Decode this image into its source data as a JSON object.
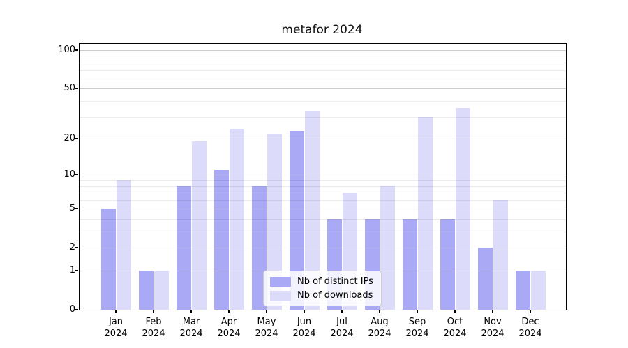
{
  "title": "metafor 2024",
  "chart_data": {
    "type": "bar",
    "title": "metafor 2024",
    "categories": [
      "Jan",
      "Feb",
      "Mar",
      "Apr",
      "May",
      "Jun",
      "Jul",
      "Aug",
      "Sep",
      "Oct",
      "Nov",
      "Dec"
    ],
    "year": "2024",
    "series": [
      {
        "name": "Nb of distinct IPs",
        "color": "#a9a9f6",
        "values": [
          5,
          1,
          8,
          11,
          8,
          23,
          4,
          4,
          4,
          4,
          2,
          1
        ]
      },
      {
        "name": "Nb of downloads",
        "color": "#dcdbf9",
        "values": [
          9,
          1,
          19,
          24,
          22,
          33,
          7,
          8,
          30,
          35,
          6,
          1
        ]
      }
    ],
    "yticks": [
      0,
      1,
      2,
      5,
      10,
      20,
      50,
      100
    ],
    "minor_yticks": [
      3,
      4,
      6,
      7,
      8,
      9,
      30,
      40,
      60,
      70,
      80,
      90
    ],
    "scale": "log1p",
    "ylim": [
      0,
      112
    ],
    "grid": true,
    "legend_position": "lower center"
  }
}
